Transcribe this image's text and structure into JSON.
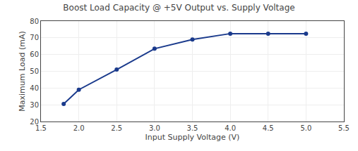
{
  "chart_data": {
    "type": "line",
    "title": "Boost Load Capacity @ +5V Output vs. Supply Voltage",
    "xlabel": "Input Supply Voltage (V)",
    "ylabel": "Maximum Load (mA)",
    "x": [
      1.8,
      2.0,
      2.5,
      3.0,
      3.5,
      4.0,
      4.5,
      5.0
    ],
    "values": [
      30.5,
      39.0,
      51.0,
      63.5,
      69.0,
      72.5,
      72.5,
      72.5
    ],
    "xlim": [
      1.5,
      5.5
    ],
    "ylim": [
      20,
      80
    ],
    "xticks": [
      1.5,
      {
        "value": 2.0,
        "label": "2.0"
      },
      2.5,
      {
        "value": 3.0,
        "label": "3.0"
      },
      3.5,
      {
        "value": 4.0,
        "label": "4.0"
      },
      4.5,
      {
        "value": 5.0,
        "label": "5.0"
      },
      5.5
    ],
    "yticks": [
      20,
      30,
      40,
      50,
      60,
      70,
      80
    ],
    "color": "#1a3a8c",
    "marker": "circle",
    "grid": true
  }
}
